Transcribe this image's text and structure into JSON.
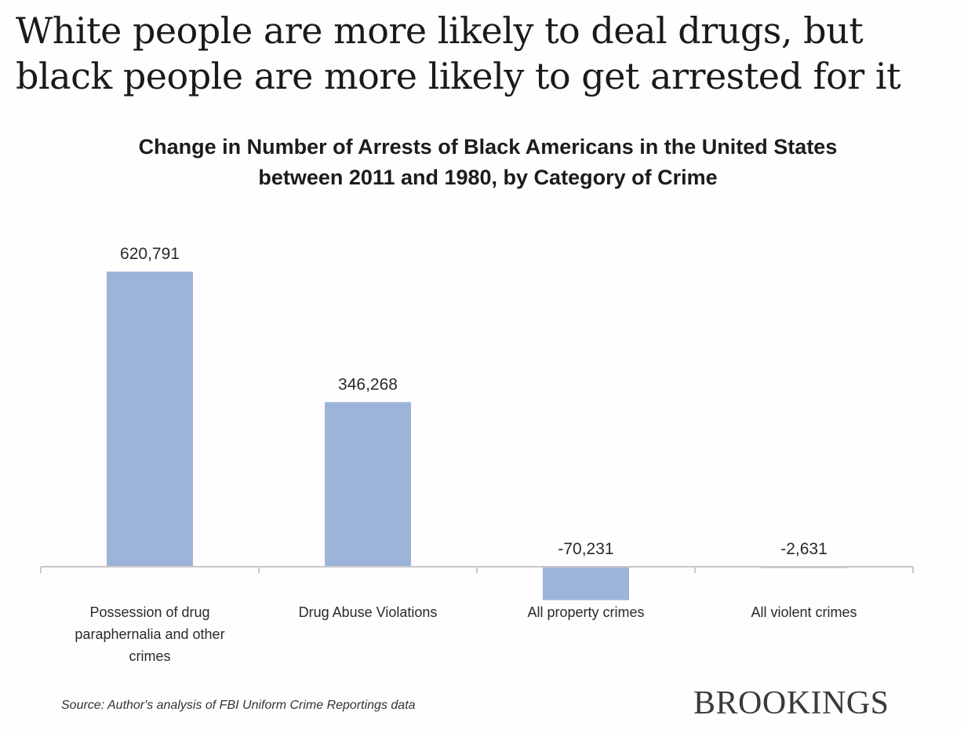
{
  "headline": {
    "line1": "White people are more likely to deal drugs, but",
    "line2": "black people are more likely to get arrested for it"
  },
  "source": "Source: Author's analysis of FBI Uniform Crime Reportings data",
  "brand": "BROOKINGS",
  "colors": {
    "bar": "#9db4d9",
    "axis": "#c8c8c8",
    "text": "#2a2a2a"
  },
  "chart_data": {
    "type": "bar",
    "title": "Change in Number of Arrests of Black Americans in the United States between 2011 and 1980, by Category of Crime",
    "xlabel": "",
    "ylabel": "",
    "grid": false,
    "legend": "none",
    "ylim": [
      -100000,
      620791
    ],
    "categories": [
      [
        "Possession of drug",
        "paraphernalia and other",
        "crimes"
      ],
      [
        "Drug Abuse Violations"
      ],
      [
        "All property crimes"
      ],
      [
        "All violent crimes"
      ]
    ],
    "values": [
      620791,
      346268,
      -70231,
      -2631
    ],
    "data_labels": [
      "620,791",
      "346,268",
      "-70,231",
      "-2,631"
    ]
  }
}
